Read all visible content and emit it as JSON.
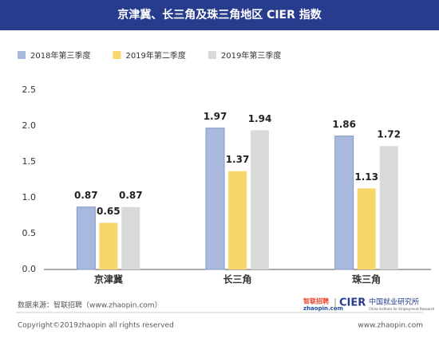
{
  "chart_data": {
    "type": "bar",
    "title": "京津冀、长三角及珠三角地区 CIER 指数",
    "categories": [
      "京津冀",
      "长三角",
      "珠三角"
    ],
    "series": [
      {
        "name": "2018年第三季度",
        "color": "#a9b9de",
        "values": [
          0.87,
          1.97,
          1.86
        ]
      },
      {
        "name": "2019年第二季度",
        "color": "#f8d66a",
        "values": [
          0.65,
          1.37,
          1.13
        ]
      },
      {
        "name": "2019年第三季度",
        "color": "#d9d9d9",
        "values": [
          0.87,
          1.94,
          1.72
        ]
      }
    ],
    "ylim": [
      0,
      2.5
    ],
    "yticks": [
      {
        "value": 0,
        "label": "0.0"
      },
      0.5,
      {
        "value": 1,
        "label": "1.0"
      },
      1.5,
      {
        "value": 2,
        "label": "2.0"
      },
      2.5
    ],
    "grid": false,
    "legend": "top-left"
  },
  "footer": {
    "source": "数据来源：智联招聘（www.zhaopin.com）",
    "copyright": "Copyright©2019zhaopin all rights reserved",
    "url": "www.zhaopin.com",
    "logo_zhaopin": "智联招聘",
    "logo_zhaopin_url": "zhaopin.com",
    "logo_cier": "CIER",
    "logo_cier_cn": "中国就业研究所",
    "logo_cier_en": "China Institute for Employment Research"
  }
}
